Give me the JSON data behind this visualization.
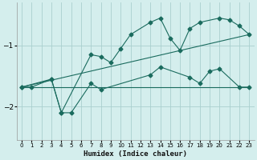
{
  "xlabel": "Humidex (Indice chaleur)",
  "bg_color": "#d4eeed",
  "grid_color": "#aacfcf",
  "line_color": "#1a6b5e",
  "xlim": [
    -0.5,
    23.5
  ],
  "ylim": [
    -2.55,
    -0.3
  ],
  "yticks": [
    -2,
    -1
  ],
  "xticks": [
    0,
    1,
    2,
    3,
    4,
    5,
    6,
    7,
    8,
    9,
    10,
    11,
    12,
    13,
    14,
    15,
    16,
    17,
    18,
    19,
    20,
    21,
    22,
    23
  ],
  "series": [
    {
      "x": [
        0,
        1,
        3,
        4,
        7,
        8,
        9,
        10,
        11,
        13,
        14,
        15,
        16,
        17,
        18,
        20,
        21,
        22,
        23
      ],
      "y": [
        -1.68,
        -1.68,
        -1.55,
        -2.1,
        -1.15,
        -1.18,
        -1.28,
        -1.05,
        -0.82,
        -0.62,
        -0.55,
        -0.88,
        -1.08,
        -0.72,
        -0.62,
        -0.55,
        -0.58,
        -0.68,
        -0.82
      ]
    },
    {
      "x": [
        0,
        3,
        4,
        5,
        7,
        8,
        13,
        14,
        17,
        18,
        19,
        20,
        22,
        23
      ],
      "y": [
        -1.68,
        -1.55,
        -2.1,
        -2.1,
        -1.62,
        -1.72,
        -1.48,
        -1.35,
        -1.52,
        -1.62,
        -1.42,
        -1.38,
        -1.68,
        -1.68
      ]
    },
    {
      "x": [
        0,
        23
      ],
      "y": [
        -1.68,
        -0.82
      ]
    },
    {
      "x": [
        0,
        23
      ],
      "y": [
        -1.68,
        -1.68
      ]
    }
  ]
}
